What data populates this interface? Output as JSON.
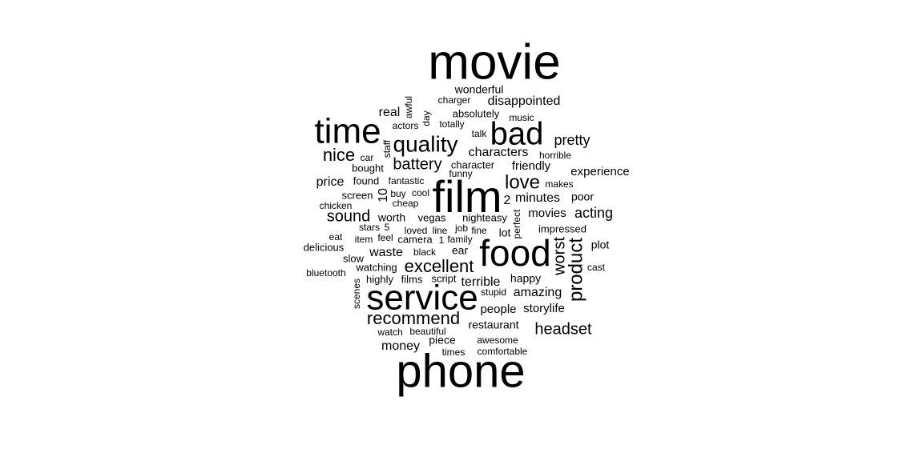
{
  "chart_data": {
    "type": "wordcloud",
    "title": "",
    "words": [
      {
        "text": "movie",
        "size": 62
      },
      {
        "text": "phone",
        "size": 58
      },
      {
        "text": "film",
        "size": 56
      },
      {
        "text": "food",
        "size": 46
      },
      {
        "text": "service",
        "size": 44
      },
      {
        "text": "time",
        "size": 44
      },
      {
        "text": "bad",
        "size": 40
      },
      {
        "text": "quality",
        "size": 28
      },
      {
        "text": "product",
        "size": 24
      },
      {
        "text": "love",
        "size": 24
      },
      {
        "text": "nice",
        "size": 22
      },
      {
        "text": "recommend",
        "size": 22
      },
      {
        "text": "excellent",
        "size": 22
      },
      {
        "text": "sound",
        "size": 20
      },
      {
        "text": "battery",
        "size": 20
      },
      {
        "text": "headset",
        "size": 20
      },
      {
        "text": "worst",
        "size": 20
      },
      {
        "text": "pretty",
        "size": 18
      },
      {
        "text": "acting",
        "size": 18
      },
      {
        "text": "characters",
        "size": 16
      },
      {
        "text": "disappointed",
        "size": 16
      },
      {
        "text": "minutes",
        "size": 16
      },
      {
        "text": "amazing",
        "size": 16
      },
      {
        "text": "money",
        "size": 16
      },
      {
        "text": "waste",
        "size": 16
      },
      {
        "text": "price",
        "size": 16
      },
      {
        "text": "real",
        "size": 16
      },
      {
        "text": "10",
        "size": 16
      },
      {
        "text": "2",
        "size": 16
      },
      {
        "text": "terrible",
        "size": 16
      },
      {
        "text": "experience",
        "size": 15
      },
      {
        "text": "friendly",
        "size": 15
      },
      {
        "text": "movies",
        "size": 15
      },
      {
        "text": "people",
        "size": 15
      },
      {
        "text": "storylife",
        "size": 15
      },
      {
        "text": "restaurant",
        "size": 14
      },
      {
        "text": "plot",
        "size": 14
      },
      {
        "text": "poor",
        "size": 14
      },
      {
        "text": "worth",
        "size": 14
      },
      {
        "text": "wonderful",
        "size": 14
      },
      {
        "text": "happy",
        "size": 14
      },
      {
        "text": "piece",
        "size": 14
      },
      {
        "text": "ear",
        "size": 14
      },
      {
        "text": "lot",
        "size": 14
      },
      {
        "text": "films",
        "size": 13
      },
      {
        "text": "script",
        "size": 13
      },
      {
        "text": "camera",
        "size": 13
      },
      {
        "text": "screen",
        "size": 13
      },
      {
        "text": "found",
        "size": 13
      },
      {
        "text": "vegas",
        "size": 13
      },
      {
        "text": "nighteasy",
        "size": 13
      },
      {
        "text": "impressed",
        "size": 13
      },
      {
        "text": "absolutely",
        "size": 13
      },
      {
        "text": "character",
        "size": 13
      },
      {
        "text": "bought",
        "size": 13
      },
      {
        "text": "highly",
        "size": 13
      },
      {
        "text": "watching",
        "size": 13
      },
      {
        "text": "delicious",
        "size": 13
      },
      {
        "text": "slow",
        "size": 13
      },
      {
        "text": "fantastic",
        "size": 12
      },
      {
        "text": "horrible",
        "size": 12
      },
      {
        "text": "makes",
        "size": 12
      },
      {
        "text": "cast",
        "size": 12
      },
      {
        "text": "awesome",
        "size": 12
      },
      {
        "text": "comfortable",
        "size": 12
      },
      {
        "text": "times",
        "size": 12
      },
      {
        "text": "watch",
        "size": 12
      },
      {
        "text": "beautiful",
        "size": 12
      },
      {
        "text": "actors",
        "size": 12
      },
      {
        "text": "totally",
        "size": 12
      },
      {
        "text": "music",
        "size": 12
      },
      {
        "text": "talk",
        "size": 12
      },
      {
        "text": "funny",
        "size": 12
      },
      {
        "text": "charger",
        "size": 12
      },
      {
        "text": "awful",
        "size": 12
      },
      {
        "text": "day",
        "size": 12
      },
      {
        "text": "staff",
        "size": 12
      },
      {
        "text": "car",
        "size": 12
      },
      {
        "text": "buy",
        "size": 12
      },
      {
        "text": "cool",
        "size": 12
      },
      {
        "text": "cheap",
        "size": 12
      },
      {
        "text": "chicken",
        "size": 12
      },
      {
        "text": "stars",
        "size": 12
      },
      {
        "text": "5",
        "size": 12
      },
      {
        "text": "loved",
        "size": 12
      },
      {
        "text": "line",
        "size": 12
      },
      {
        "text": "job",
        "size": 12
      },
      {
        "text": "fine",
        "size": 12
      },
      {
        "text": "1",
        "size": 12
      },
      {
        "text": "family",
        "size": 12
      },
      {
        "text": "item",
        "size": 12
      },
      {
        "text": "feel",
        "size": 12
      },
      {
        "text": "eat",
        "size": 12
      },
      {
        "text": "black",
        "size": 12
      },
      {
        "text": "bluetooth",
        "size": 12
      },
      {
        "text": "scenes",
        "size": 12
      },
      {
        "text": "stupid",
        "size": 12
      },
      {
        "text": "perfect",
        "size": 12
      }
    ]
  }
}
